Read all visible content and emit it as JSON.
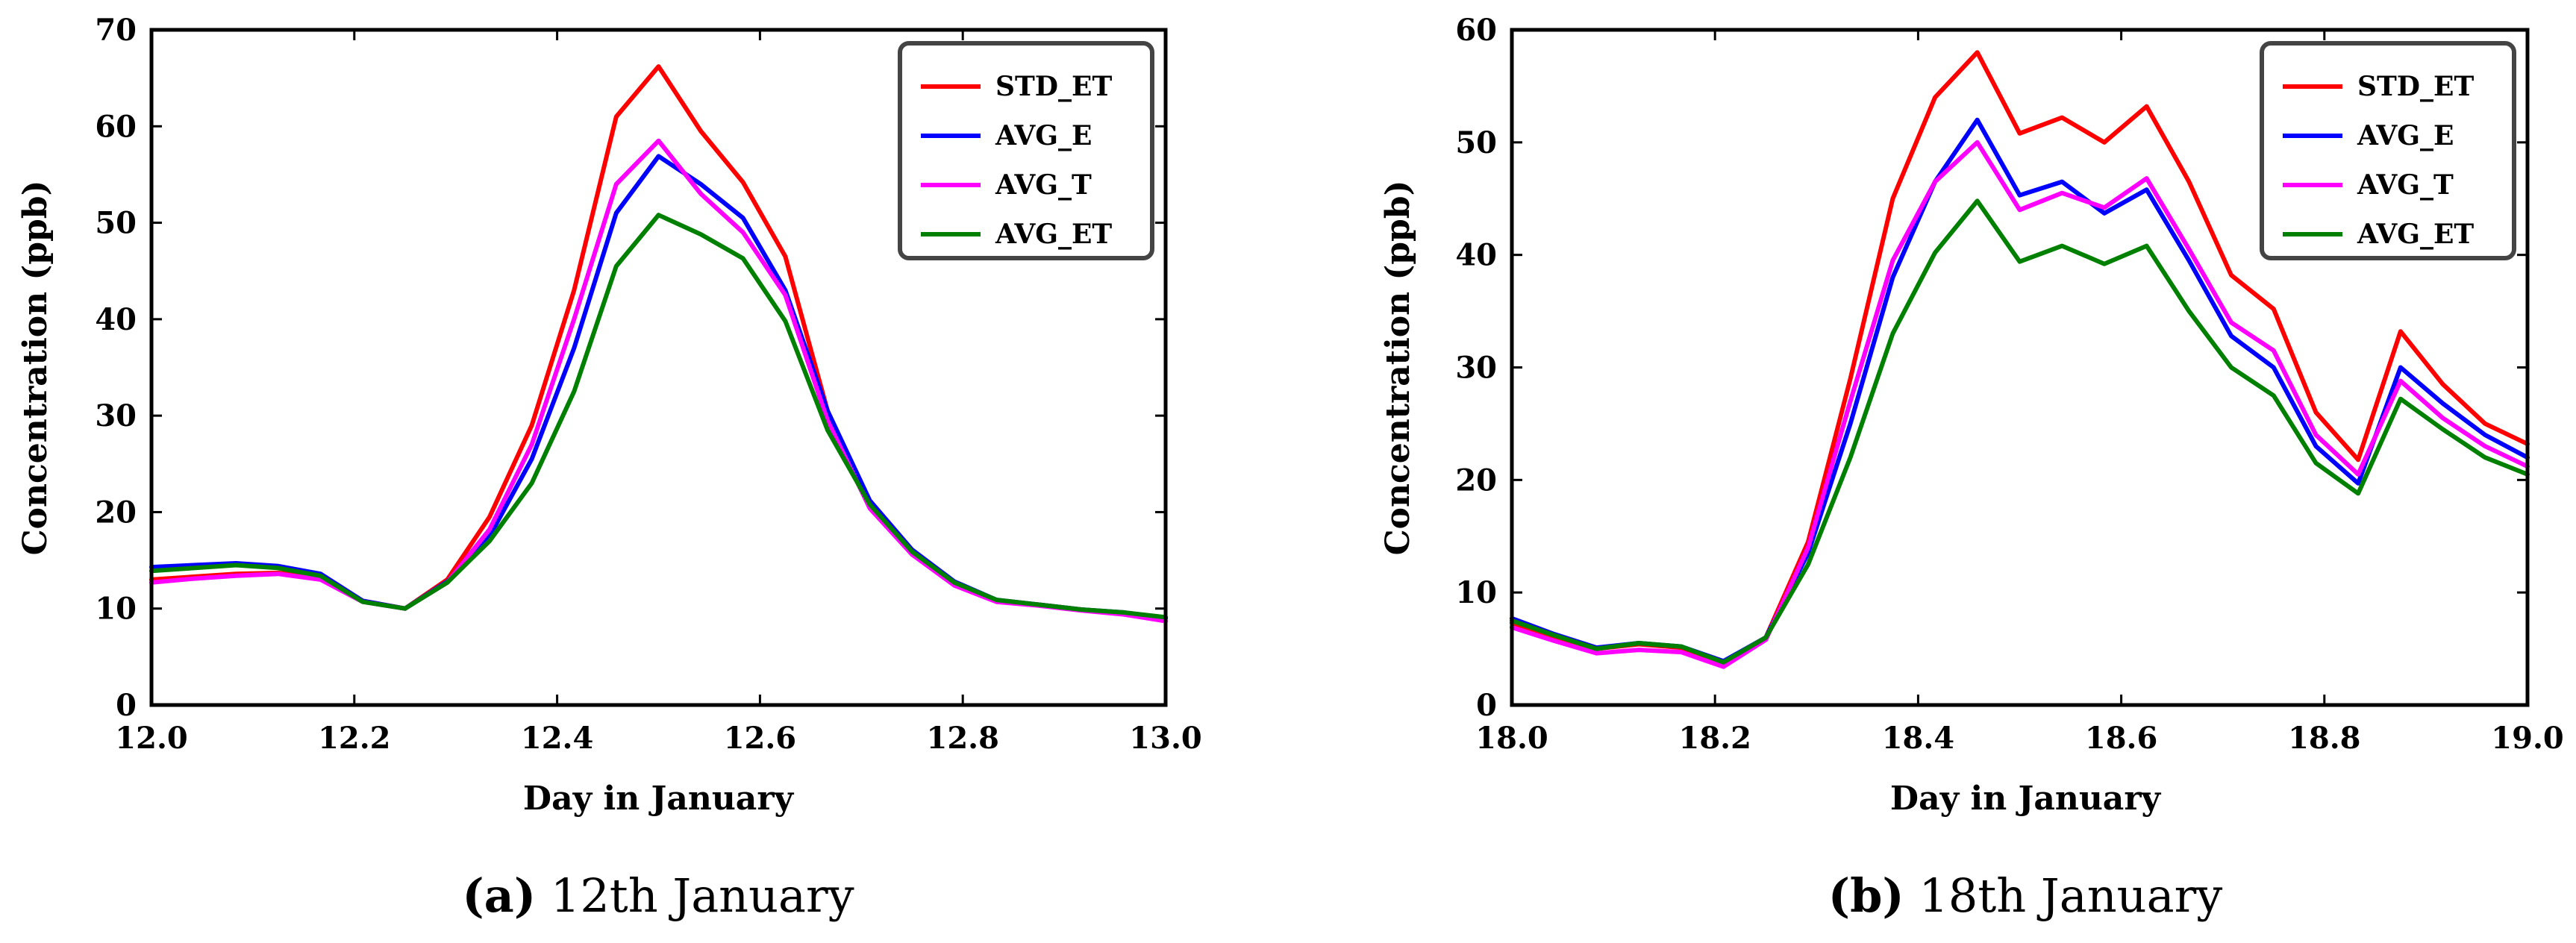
{
  "figure": {
    "captions": [
      {
        "letter": "(a)",
        "text": " 12th January"
      },
      {
        "letter": "(b)",
        "text": " 18th January"
      }
    ]
  },
  "chart_data": [
    {
      "type": "line",
      "xlabel": "Day in January",
      "ylabel": "Concentration (ppb)",
      "xlim": [
        12.0,
        13.0
      ],
      "ylim": [
        0,
        70
      ],
      "xticks": [
        "12.0",
        "12.2",
        "12.4",
        "12.6",
        "12.8",
        "13.0"
      ],
      "yticks": [
        "0",
        "10",
        "20",
        "30",
        "40",
        "50",
        "60",
        "70"
      ],
      "grid": false,
      "legend_position": "top-right",
      "x": [
        12.0,
        12.0417,
        12.0833,
        12.125,
        12.1667,
        12.2083,
        12.25,
        12.2917,
        12.3333,
        12.375,
        12.4167,
        12.4583,
        12.5,
        12.5417,
        12.5833,
        12.625,
        12.6667,
        12.7083,
        12.75,
        12.7917,
        12.8333,
        12.875,
        12.9167,
        12.9583,
        13.0
      ],
      "series": [
        {
          "name": "STD_ET",
          "color": "#ff0000",
          "values": [
            13.0,
            13.3,
            13.6,
            13.7,
            13.2,
            10.8,
            10.0,
            13.0,
            19.5,
            29.0,
            43.0,
            61.0,
            66.2,
            59.5,
            54.2,
            46.5,
            30.5,
            21.0,
            16.0,
            12.6,
            10.8,
            10.4,
            9.9,
            9.5,
            9.0
          ]
        },
        {
          "name": "AVG_E",
          "color": "#0000ff",
          "values": [
            14.3,
            14.5,
            14.7,
            14.4,
            13.6,
            10.8,
            10.0,
            12.8,
            17.5,
            25.5,
            37.0,
            51.0,
            56.9,
            54.0,
            50.5,
            43.0,
            30.5,
            21.2,
            16.1,
            12.8,
            10.9,
            10.4,
            9.9,
            9.6,
            9.0
          ]
        },
        {
          "name": "AVG_T",
          "color": "#ff00ff",
          "values": [
            12.7,
            13.1,
            13.4,
            13.6,
            13.0,
            10.7,
            10.0,
            12.7,
            18.2,
            27.0,
            40.0,
            54.0,
            58.5,
            53.0,
            49.0,
            42.5,
            29.5,
            20.4,
            15.6,
            12.4,
            10.7,
            10.3,
            9.8,
            9.4,
            8.7
          ]
        },
        {
          "name": "AVG_ET",
          "color": "#008000",
          "values": [
            13.9,
            14.2,
            14.5,
            14.2,
            13.4,
            10.7,
            10.0,
            12.7,
            17.0,
            23.0,
            32.5,
            45.5,
            50.8,
            48.8,
            46.3,
            39.8,
            28.5,
            20.8,
            15.9,
            12.7,
            10.9,
            10.4,
            9.9,
            9.6,
            9.1
          ]
        }
      ]
    },
    {
      "type": "line",
      "xlabel": "Day in January",
      "ylabel": "Concentration (ppb)",
      "xlim": [
        18.0,
        19.0
      ],
      "ylim": [
        0,
        60
      ],
      "xticks": [
        "18.0",
        "18.2",
        "18.4",
        "18.6",
        "18.8",
        "19.0"
      ],
      "yticks": [
        "0",
        "10",
        "20",
        "30",
        "40",
        "50",
        "60"
      ],
      "grid": false,
      "legend_position": "top-right",
      "x": [
        18.0,
        18.0417,
        18.0833,
        18.125,
        18.1667,
        18.2083,
        18.25,
        18.2917,
        18.3333,
        18.375,
        18.4167,
        18.4583,
        18.5,
        18.5417,
        18.5833,
        18.625,
        18.6667,
        18.7083,
        18.75,
        18.7917,
        18.8333,
        18.875,
        18.9167,
        18.9583,
        19.0
      ],
      "series": [
        {
          "name": "STD_ET",
          "color": "#ff0000",
          "values": [
            7.3,
            6.0,
            5.0,
            5.4,
            5.1,
            3.8,
            6.0,
            14.5,
            29.0,
            45.0,
            54.0,
            58.0,
            50.8,
            52.2,
            50.0,
            53.2,
            46.5,
            38.2,
            35.2,
            26.0,
            21.8,
            33.2,
            28.5,
            25.0,
            23.2
          ]
        },
        {
          "name": "AVG_E",
          "color": "#0000ff",
          "values": [
            7.7,
            6.3,
            5.1,
            5.5,
            5.2,
            3.9,
            6.0,
            13.5,
            25.0,
            38.0,
            46.5,
            52.0,
            45.3,
            46.5,
            43.7,
            45.8,
            39.5,
            32.8,
            30.0,
            23.0,
            19.7,
            30.0,
            26.8,
            24.0,
            22.0
          ]
        },
        {
          "name": "AVG_T",
          "color": "#ff00ff",
          "values": [
            6.9,
            5.7,
            4.6,
            4.9,
            4.7,
            3.4,
            5.8,
            14.0,
            27.0,
            39.5,
            46.5,
            50.0,
            44.0,
            45.5,
            44.2,
            46.8,
            40.5,
            34.0,
            31.5,
            24.0,
            20.5,
            28.8,
            25.5,
            23.0,
            21.2
          ]
        },
        {
          "name": "AVG_ET",
          "color": "#008000",
          "values": [
            7.5,
            6.2,
            5.0,
            5.5,
            5.2,
            3.8,
            6.0,
            12.5,
            22.0,
            33.0,
            40.2,
            44.8,
            39.4,
            40.8,
            39.2,
            40.8,
            35.0,
            30.0,
            27.5,
            21.5,
            18.8,
            27.2,
            24.5,
            22.0,
            20.5
          ]
        }
      ]
    }
  ]
}
